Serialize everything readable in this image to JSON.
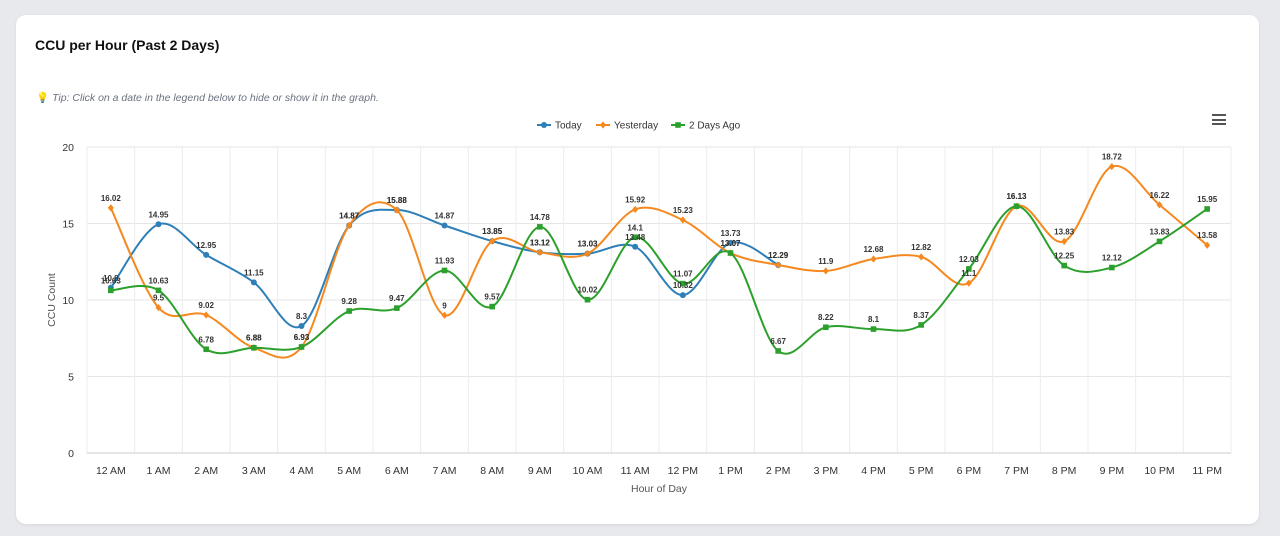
{
  "card": {
    "title": "CCU per Hour (Past 2 Days)",
    "tip_icon": "lightbulb-icon",
    "tip": "Tip: Click on a date in the legend below to hide or show it in the graph.",
    "menu_icon": "hamburger-menu-icon"
  },
  "chart_data": {
    "type": "line",
    "title": "",
    "xlabel": "Hour of Day",
    "ylabel": "CCU Count",
    "ylim": [
      0,
      20
    ],
    "yticks": [
      0,
      5,
      10,
      15,
      20
    ],
    "grid": true,
    "legend_position": "top",
    "categories": [
      "12 AM",
      "1 AM",
      "2 AM",
      "3 AM",
      "4 AM",
      "5 AM",
      "6 AM",
      "7 AM",
      "8 AM",
      "9 AM",
      "10 AM",
      "11 AM",
      "12 PM",
      "1 PM",
      "2 PM",
      "3 PM",
      "4 PM",
      "5 PM",
      "6 PM",
      "7 PM",
      "8 PM",
      "9 PM",
      "10 PM",
      "11 PM"
    ],
    "series": [
      {
        "name": "Today",
        "color": "#2e7fb8",
        "marker": "circle",
        "values": [
          10.8,
          14.95,
          12.95,
          11.15,
          8.3,
          14.87,
          15.88,
          14.87,
          13.85,
          13.12,
          13.03,
          13.48,
          10.32,
          13.73,
          12.29,
          null,
          null,
          null,
          null,
          null,
          null,
          null,
          null,
          null
        ]
      },
      {
        "name": "Yesterday",
        "color": "#f5891f",
        "marker": "diamond",
        "values": [
          16.02,
          9.5,
          9.02,
          6.88,
          6.93,
          14.87,
          15.88,
          9,
          13.85,
          13.12,
          13.03,
          15.92,
          15.23,
          13.07,
          12.29,
          11.9,
          12.68,
          12.82,
          11.1,
          16.13,
          13.83,
          18.72,
          16.22,
          13.58
        ]
      },
      {
        "name": "2 Days Ago",
        "color": "#2ca02c",
        "marker": "square",
        "values": [
          10.63,
          10.63,
          6.78,
          6.88,
          6.93,
          9.28,
          9.47,
          11.93,
          9.57,
          14.78,
          10.02,
          14.1,
          11.07,
          13.07,
          6.67,
          8.22,
          8.1,
          8.37,
          12.03,
          16.13,
          12.25,
          12.12,
          13.83,
          15.95
        ]
      }
    ]
  }
}
